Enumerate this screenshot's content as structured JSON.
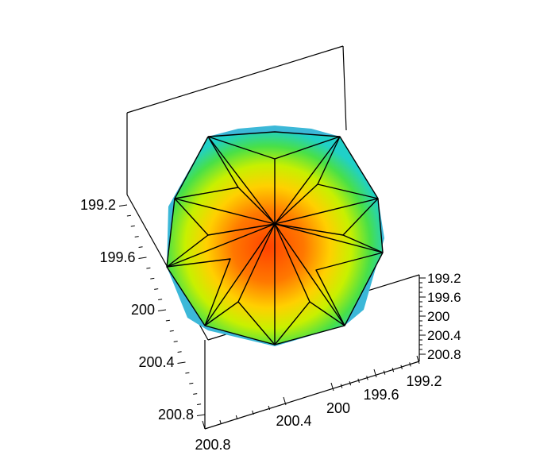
{
  "chart_data": {
    "type": "surface3d",
    "title": "",
    "surface": "faceted polyhedral sphere, colored by height (red at center to green/cyan at edges)",
    "colormap": [
      "#ff4a00",
      "#ff7a00",
      "#ffd000",
      "#d8f000",
      "#40e040",
      "#20d8c0"
    ],
    "axes": {
      "left": {
        "ticks": [
          "199.2",
          "199.6",
          "200",
          "200.4",
          "200.8"
        ]
      },
      "right": {
        "ticks": [
          "199.2",
          "199.6",
          "200",
          "200.4",
          "200.8"
        ]
      },
      "bottom_right": {
        "ticks": [
          "199.2",
          "199.6",
          "200"
        ]
      },
      "bottom_left": {
        "ticks": [
          "200.4",
          "200.8"
        ]
      }
    },
    "box": true,
    "grid": false
  }
}
